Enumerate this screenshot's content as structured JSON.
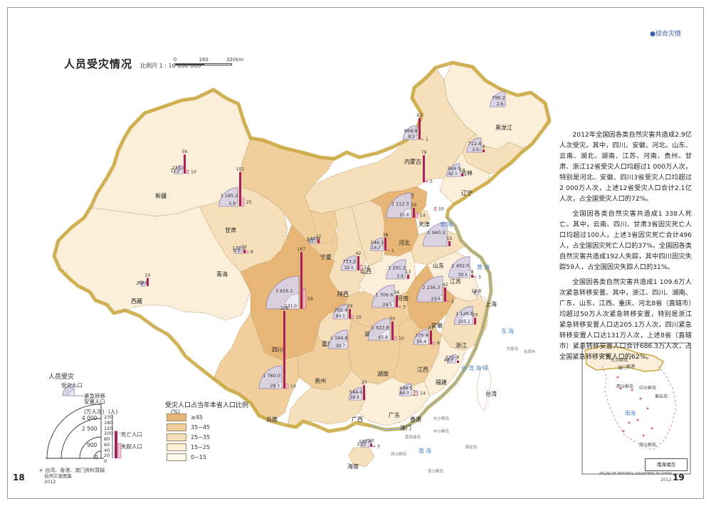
{
  "header_tag": "●综合灾情",
  "title": "人员受灾情况",
  "scale_text": "比例尺 1 : 16 000 000",
  "scale_ticks": [
    "0",
    "160",
    "320km"
  ],
  "description": [
    "2012年全国因各类自然灾害共造成2.9亿人次受灾。其中，四川、安徽、河北、山东、云南、湖北、湖南、江苏、河南、贵州、甘肃、浙江12省受灾人口均超过1 000万人次，特别是河北、安徽、四川3省受灾人口均超过2 000万人次，上述12省受灾人口合计2.1亿人次，占全国受灾人口的72%。",
    "全国因各类自然灾害共造成1 338人死亡。其中，云南、四川、甘肃3省因灾死亡人口均超过100人，上述3省因灾死亡合计496人，占全国因灾死亡人口的37%。全国因各类自然灾害共造成192人失踪，其中四川因灾失踪59人，占全国因灾失踪人口的31%。",
    "全国因各类自然灾害共造成1 109.6万人次紧急转移安置。其中，浙江、四川、湖南、广东、山东、江西、重庆、河北8省（直辖市）均超过50万人次紧急转移安置，特别是浙江紧急转移安置人口达205.1万人次，四川紧急转移安置人口达131万人次，上述8省（直辖市）紧急转移安置人口合计686.3万人次，占全国紧急转移安置人口的62%。"
  ],
  "legend_symbol": {
    "title": "人员受灾",
    "affected_label": "受灾人口",
    "evacuated_label": "紧急转移\n安置人口",
    "unit_person_times": "(万人次)",
    "unit_persons": "(人)",
    "quarter_ticks": [
      "4 000",
      "2 500",
      "900",
      "0"
    ],
    "bar_ticks": [
      "230",
      "180",
      "120",
      "100",
      "80",
      "60",
      "40",
      "20",
      "0"
    ],
    "death_label": "死亡人口",
    "missing_label": "失踪人口"
  },
  "legend_ratio": {
    "title": "受灾人口占当年本省人口比例",
    "unit": "(%)",
    "classes": [
      {
        "label": "≥45",
        "color": "#e7b676"
      },
      {
        "label": "35~45",
        "color": "#f1cf9d"
      },
      {
        "label": "25~35",
        "color": "#f6e0bb"
      },
      {
        "label": "15~25",
        "color": "#fbefd9"
      },
      {
        "label": "0~15",
        "color": "#fffaf0"
      }
    ]
  },
  "footnote": "＊ 台湾、香港、澳门资料暂缺",
  "page_left": "18",
  "page_right": "19",
  "atlas_left": "自然灾害图集\n2012",
  "inset": {
    "sea": "南海",
    "box_title": "南海诸岛",
    "credit": "ATLAS OF NATURAL DISASTERS IN CHINA",
    "year": "2012",
    "islands": [
      "东沙群岛",
      "西沙群岛",
      "中沙群岛",
      "南沙群岛",
      "黄岩岛",
      "广东",
      "香港",
      "澳门"
    ]
  },
  "map_labels": {
    "seas": [
      "渤海",
      "黄海",
      "东海",
      "南海",
      "台湾海峡"
    ],
    "islands": [
      "台湾",
      "钓鱼岛",
      "赤尾屿",
      "东沙群岛",
      "西沙群岛",
      "中沙群岛",
      "南沙群岛",
      "黄岩岛",
      "南海诸岛"
    ]
  },
  "colors": {
    "border": "#c9a63c",
    "quarter_fill": "#d8d2e6",
    "quarter_stroke": "#8a7fb0",
    "evac_fill": "#ece8f4",
    "bar_death": "#a8205c",
    "bar_missing": "#f2c8d8",
    "sea_label": "#4a84c4"
  },
  "provinces": [
    {
      "name": "黑龙江",
      "class": 4,
      "affected": "796.2",
      "evac": "2.6",
      "death": "",
      "missing": ""
    },
    {
      "name": "吉林",
      "class": 3,
      "affected": "712.4",
      "evac": "2.6",
      "death": "8",
      "missing": ""
    },
    {
      "name": "辽宁",
      "class": 4,
      "affected": "569.1",
      "evac": "42.5",
      "death": "10",
      "missing": ""
    },
    {
      "name": "内蒙古",
      "class": 3,
      "affected": "668.9",
      "evac": "8.5",
      "death": "63",
      "missing": "1"
    },
    {
      "name": "新疆",
      "class": 4,
      "affected": "233.4",
      "evac": "11.2",
      "death": "56",
      "missing": "10"
    },
    {
      "name": "甘肃",
      "class": 2,
      "affected": "1 185.2",
      "evac": "5.9",
      "death": "101",
      "missing": "25"
    },
    {
      "name": "青海",
      "class": 3,
      "affected": "172.7",
      "evac": "0.3",
      "death": "11",
      "missing": "8"
    },
    {
      "name": "西藏",
      "class": 4,
      "affected": "49.0",
      "evac": "2.2",
      "death": "24",
      "missing": ""
    },
    {
      "name": "宁夏",
      "class": 2,
      "affected": "144.0",
      "evac": "0.2",
      "death": "12",
      "missing": ""
    },
    {
      "name": "陕西",
      "class": 3,
      "affected": "733.2",
      "evac": "32.6",
      "death": "42",
      "missing": "16"
    },
    {
      "name": "山西",
      "class": 3,
      "affected": "546.3",
      "evac": "14.3",
      "death": "38",
      "missing": "1"
    },
    {
      "name": "北京",
      "class": 3,
      "affected": "",
      "evac": "",
      "death": "79",
      "missing": "5"
    },
    {
      "name": "天津",
      "class": 3,
      "affected": "",
      "evac": "",
      "death": "",
      "missing": "10"
    },
    {
      "name": "河北",
      "class": 1,
      "affected": "2 112.3",
      "evac": "51.6",
      "death": "29",
      "missing": "14"
    },
    {
      "name": "山东",
      "class": 3,
      "affected": "1 940.3",
      "evac": "",
      "death": "15",
      "missing": ""
    },
    {
      "name": "河南",
      "class": 4,
      "affected": "1 291.2",
      "evac": "2.9",
      "death": "13",
      "missing": ""
    },
    {
      "name": "江苏",
      "class": 4,
      "affected": "1 492.0",
      "evac": "30.6",
      "death": "8",
      "missing": "3"
    },
    {
      "name": "上海",
      "class": 5,
      "affected": "12.0",
      "evac": "4",
      "death": "",
      "missing": ""
    },
    {
      "name": "安徽",
      "class": 1,
      "affected": "2 236.3",
      "evac": "23.8",
      "death": "42",
      "missing": "2"
    },
    {
      "name": "湖北",
      "class": 2,
      "affected": "1 706.6",
      "evac": "24.5",
      "death": "36",
      "missing": "3"
    },
    {
      "name": "重庆",
      "class": 3,
      "affected": "705.4",
      "evac": "64.5",
      "death": "29",
      "missing": "10"
    },
    {
      "name": "四川",
      "class": 1,
      "affected": "3 655.1",
      "evac": "131.0",
      "death": "167",
      "missing": "59"
    },
    {
      "name": "浙江",
      "class": 3,
      "affected": "1 126.8",
      "evac": "205.1",
      "death": "20",
      "missing": ""
    },
    {
      "name": "湖南",
      "class": 2,
      "affected": "1 622.8",
      "evac": "65.8",
      "death": "55",
      "missing": "10"
    },
    {
      "name": "江西",
      "class": 2,
      "affected": "775.9",
      "evac": "56.4",
      "death": "41",
      "missing": "8"
    },
    {
      "name": "贵州",
      "class": 2,
      "affected": "1 194.8",
      "evac": "30.7",
      "death": "",
      "missing": ""
    },
    {
      "name": "福建",
      "class": 4,
      "affected": "225.7",
      "evac": "48.3",
      "death": "7",
      "missing": ""
    },
    {
      "name": "云南",
      "class": 2,
      "affected": "1 760.0",
      "evac": "28.3",
      "death": "228",
      "missing": "14"
    },
    {
      "name": "广西",
      "class": 3,
      "affected": "544.1",
      "evac": "34.8",
      "death": "43",
      "missing": ""
    },
    {
      "name": "广东",
      "class": 4,
      "affected": "499.5",
      "evac": "64.0",
      "death": "3",
      "missing": "14"
    },
    {
      "name": "海南",
      "class": 3,
      "affected": "197.6",
      "evac": "23.5",
      "death": "10",
      "missing": "3"
    },
    {
      "name": "台湾",
      "class": 0,
      "affected": "",
      "evac": "",
      "death": "",
      "missing": ""
    },
    {
      "name": "香港",
      "class": 0,
      "affected": "",
      "evac": "",
      "death": "",
      "missing": ""
    },
    {
      "name": "澳门",
      "class": 0,
      "affected": "",
      "evac": "",
      "death": "",
      "missing": ""
    }
  ]
}
